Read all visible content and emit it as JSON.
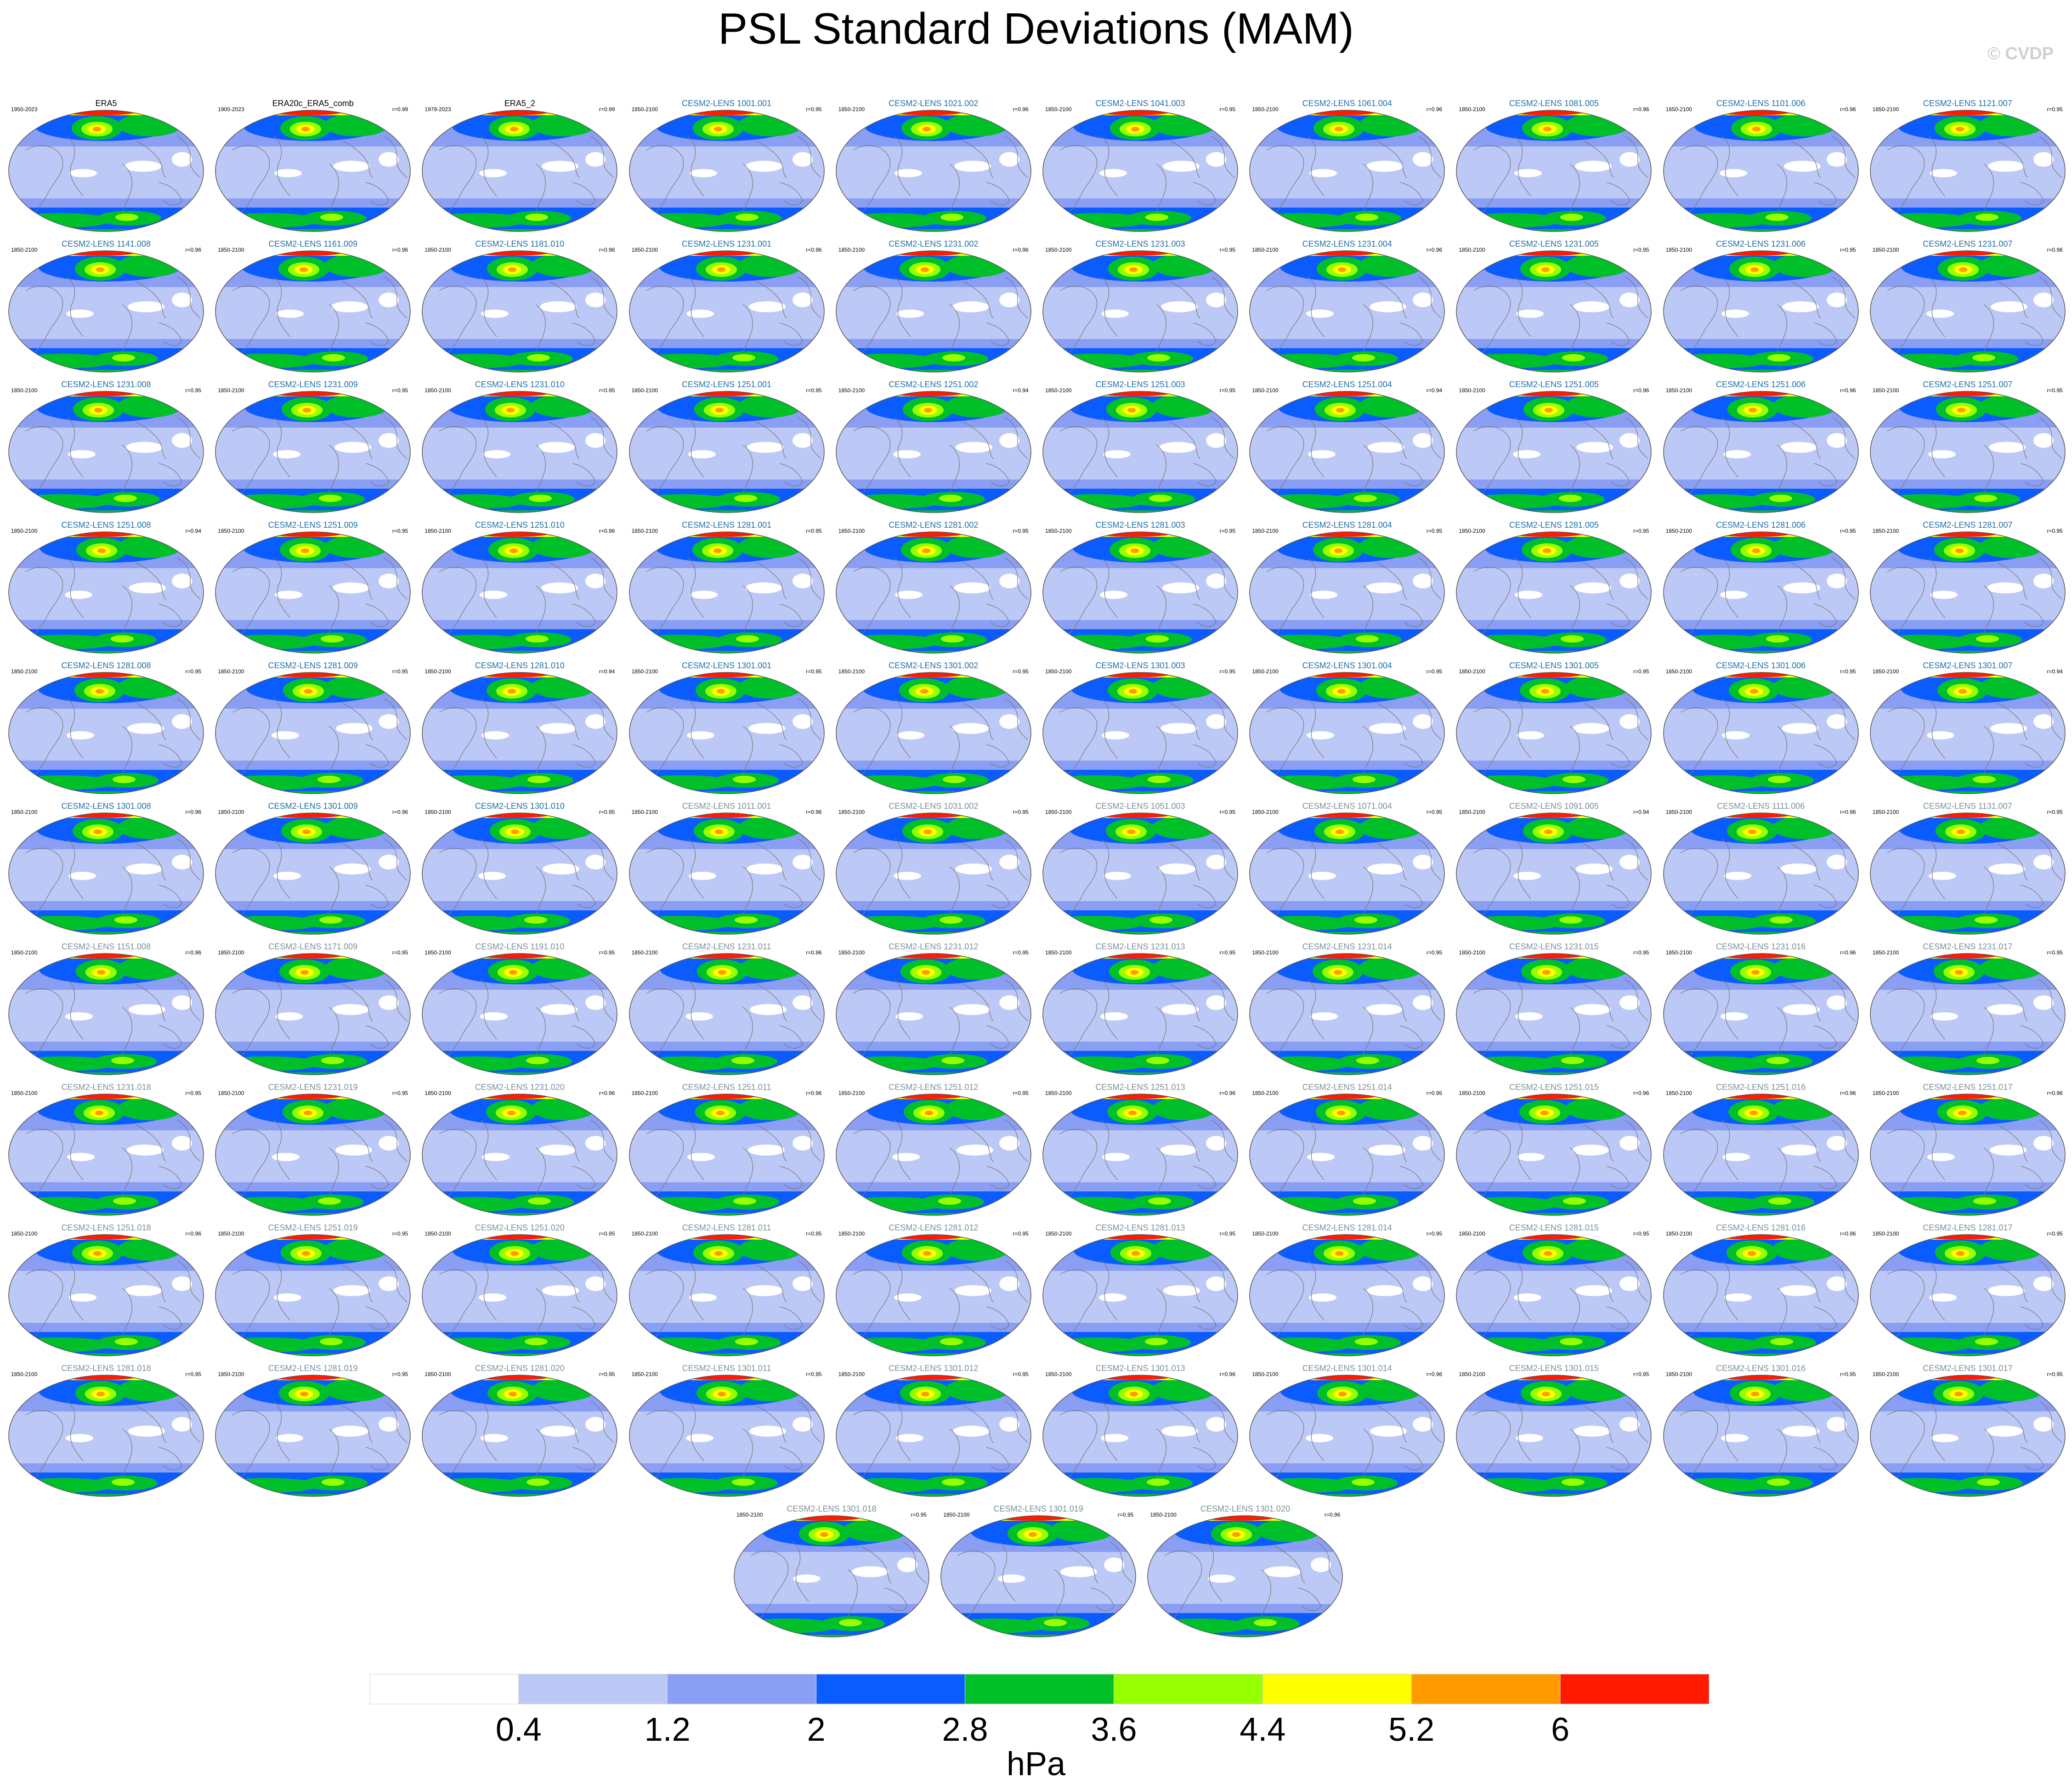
{
  "title": "PSL Standard Deviations (MAM)",
  "watermark": "© CVDP",
  "colors": {
    "obs_title": "#000000",
    "set1_title": "#1f6fa8",
    "set2_title": "#7a8f9c",
    "ocean": "#bcc9f6",
    "coast": "#7a7a7a"
  },
  "chart_data": {
    "type": "heatmap",
    "description_type": "panel grid of global maps",
    "units": "hPa",
    "colorbar": {
      "ticks": [
        "0.4",
        "1.2",
        "2",
        "2.8",
        "3.6",
        "4.4",
        "5.2",
        "6"
      ],
      "colors": [
        "#ffffff",
        "#bcc9f6",
        "#8a9ef3",
        "#0a5cff",
        "#00c02a",
        "#96ff00",
        "#ffff00",
        "#ff9a00",
        "#ff1a00"
      ]
    },
    "panels": [
      {
        "title": "ERA5",
        "period": "1950-2023",
        "r": "",
        "group": "obs"
      },
      {
        "title": "ERA20c_ERA5_comb",
        "period": "1900-2023",
        "r": "r=0.99",
        "group": "obs"
      },
      {
        "title": "ERA5_2",
        "period": "1979-2023",
        "r": "r=0.99",
        "group": "obs"
      },
      {
        "title": "CESM2-LENS 1001.001",
        "period": "1850-2100",
        "r": "r=0.95",
        "group": "set1"
      },
      {
        "title": "CESM2-LENS 1021.002",
        "period": "1850-2100",
        "r": "r=0.96",
        "group": "set1"
      },
      {
        "title": "CESM2-LENS 1041.003",
        "period": "1850-2100",
        "r": "r=0.95",
        "group": "set1"
      },
      {
        "title": "CESM2-LENS 1061.004",
        "period": "1850-2100",
        "r": "r=0.96",
        "group": "set1"
      },
      {
        "title": "CESM2-LENS 1081.005",
        "period": "1850-2100",
        "r": "r=0.96",
        "group": "set1"
      },
      {
        "title": "CESM2-LENS 1101.006",
        "period": "1850-2100",
        "r": "r=0.96",
        "group": "set1"
      },
      {
        "title": "CESM2-LENS 1121.007",
        "period": "1850-2100",
        "r": "r=0.95",
        "group": "set1"
      },
      {
        "title": "CESM2-LENS 1141.008",
        "period": "1850-2100",
        "r": "r=0.96",
        "group": "set1"
      },
      {
        "title": "CESM2-LENS 1161.009",
        "period": "1850-2100",
        "r": "r=0.96",
        "group": "set1"
      },
      {
        "title": "CESM2-LENS 1181.010",
        "period": "1850-2100",
        "r": "r=0.96",
        "group": "set1"
      },
      {
        "title": "CESM2-LENS 1231.001",
        "period": "1850-2100",
        "r": "r=0.96",
        "group": "set1"
      },
      {
        "title": "CESM2-LENS 1231.002",
        "period": "1850-2100",
        "r": "r=0.96",
        "group": "set1"
      },
      {
        "title": "CESM2-LENS 1231.003",
        "period": "1850-2100",
        "r": "r=0.95",
        "group": "set1"
      },
      {
        "title": "CESM2-LENS 1231.004",
        "period": "1850-2100",
        "r": "r=0.96",
        "group": "set1"
      },
      {
        "title": "CESM2-LENS 1231.005",
        "period": "1850-2100",
        "r": "r=0.95",
        "group": "set1"
      },
      {
        "title": "CESM2-LENS 1231.006",
        "period": "1850-2100",
        "r": "r=0.95",
        "group": "set1"
      },
      {
        "title": "CESM2-LENS 1231.007",
        "period": "1850-2100",
        "r": "r=0.96",
        "group": "set1"
      },
      {
        "title": "CESM2-LENS 1231.008",
        "period": "1850-2100",
        "r": "r=0.95",
        "group": "set1"
      },
      {
        "title": "CESM2-LENS 1231.009",
        "period": "1850-2100",
        "r": "r=0.95",
        "group": "set1"
      },
      {
        "title": "CESM2-LENS 1231.010",
        "period": "1850-2100",
        "r": "r=0.95",
        "group": "set1"
      },
      {
        "title": "CESM2-LENS 1251.001",
        "period": "1850-2100",
        "r": "r=0.95",
        "group": "set1"
      },
      {
        "title": "CESM2-LENS 1251.002",
        "period": "1850-2100",
        "r": "r=0.94",
        "group": "set1"
      },
      {
        "title": "CESM2-LENS 1251.003",
        "period": "1850-2100",
        "r": "r=0.95",
        "group": "set1"
      },
      {
        "title": "CESM2-LENS 1251.004",
        "period": "1850-2100",
        "r": "r=0.94",
        "group": "set1"
      },
      {
        "title": "CESM2-LENS 1251.005",
        "period": "1850-2100",
        "r": "r=0.96",
        "group": "set1"
      },
      {
        "title": "CESM2-LENS 1251.006",
        "period": "1850-2100",
        "r": "r=0.96",
        "group": "set1"
      },
      {
        "title": "CESM2-LENS 1251.007",
        "period": "1850-2100",
        "r": "r=0.95",
        "group": "set1"
      },
      {
        "title": "CESM2-LENS 1251.008",
        "period": "1850-2100",
        "r": "r=0.94",
        "group": "set1"
      },
      {
        "title": "CESM2-LENS 1251.009",
        "period": "1850-2100",
        "r": "r=0.95",
        "group": "set1"
      },
      {
        "title": "CESM2-LENS 1251.010",
        "period": "1850-2100",
        "r": "r=0.96",
        "group": "set1"
      },
      {
        "title": "CESM2-LENS 1281.001",
        "period": "1850-2100",
        "r": "r=0.95",
        "group": "set1"
      },
      {
        "title": "CESM2-LENS 1281.002",
        "period": "1850-2100",
        "r": "r=0.95",
        "group": "set1"
      },
      {
        "title": "CESM2-LENS 1281.003",
        "period": "1850-2100",
        "r": "r=0.95",
        "group": "set1"
      },
      {
        "title": "CESM2-LENS 1281.004",
        "period": "1850-2100",
        "r": "r=0.95",
        "group": "set1"
      },
      {
        "title": "CESM2-LENS 1281.005",
        "period": "1850-2100",
        "r": "r=0.95",
        "group": "set1"
      },
      {
        "title": "CESM2-LENS 1281.006",
        "period": "1850-2100",
        "r": "r=0.95",
        "group": "set1"
      },
      {
        "title": "CESM2-LENS 1281.007",
        "period": "1850-2100",
        "r": "r=0.95",
        "group": "set1"
      },
      {
        "title": "CESM2-LENS 1281.008",
        "period": "1850-2100",
        "r": "r=0.95",
        "group": "set1"
      },
      {
        "title": "CESM2-LENS 1281.009",
        "period": "1850-2100",
        "r": "r=0.95",
        "group": "set1"
      },
      {
        "title": "CESM2-LENS 1281.010",
        "period": "1850-2100",
        "r": "r=0.94",
        "group": "set1"
      },
      {
        "title": "CESM2-LENS 1301.001",
        "period": "1850-2100",
        "r": "r=0.95",
        "group": "set1"
      },
      {
        "title": "CESM2-LENS 1301.002",
        "period": "1850-2100",
        "r": "r=0.95",
        "group": "set1"
      },
      {
        "title": "CESM2-LENS 1301.003",
        "period": "1850-2100",
        "r": "r=0.95",
        "group": "set1"
      },
      {
        "title": "CESM2-LENS 1301.004",
        "period": "1850-2100",
        "r": "r=0.95",
        "group": "set1"
      },
      {
        "title": "CESM2-LENS 1301.005",
        "period": "1850-2100",
        "r": "r=0.95",
        "group": "set1"
      },
      {
        "title": "CESM2-LENS 1301.006",
        "period": "1850-2100",
        "r": "r=0.95",
        "group": "set1"
      },
      {
        "title": "CESM2-LENS 1301.007",
        "period": "1850-2100",
        "r": "r=0.94",
        "group": "set1"
      },
      {
        "title": "CESM2-LENS 1301.008",
        "period": "1850-2100",
        "r": "r=0.96",
        "group": "set1"
      },
      {
        "title": "CESM2-LENS 1301.009",
        "period": "1850-2100",
        "r": "r=0.96",
        "group": "set1"
      },
      {
        "title": "CESM2-LENS 1301.010",
        "period": "1850-2100",
        "r": "r=0.95",
        "group": "set1"
      },
      {
        "title": "CESM2-LENS 1011.001",
        "period": "1850-2100",
        "r": "r=0.96",
        "group": "set2"
      },
      {
        "title": "CESM2-LENS 1031.002",
        "period": "1850-2100",
        "r": "r=0.95",
        "group": "set2"
      },
      {
        "title": "CESM2-LENS 1051.003",
        "period": "1850-2100",
        "r": "r=0.95",
        "group": "set2"
      },
      {
        "title": "CESM2-LENS 1071.004",
        "period": "1850-2100",
        "r": "r=0.95",
        "group": "set2"
      },
      {
        "title": "CESM2-LENS 1091.005",
        "period": "1850-2100",
        "r": "r=0.94",
        "group": "set2"
      },
      {
        "title": "CESM2-LENS 1111.006",
        "period": "1850-2100",
        "r": "r=0.96",
        "group": "set2"
      },
      {
        "title": "CESM2-LENS 1131.007",
        "period": "1850-2100",
        "r": "r=0.95",
        "group": "set2"
      },
      {
        "title": "CESM2-LENS 1151.008",
        "period": "1850-2100",
        "r": "r=0.96",
        "group": "set2"
      },
      {
        "title": "CESM2-LENS 1171.009",
        "period": "1850-2100",
        "r": "r=0.95",
        "group": "set2"
      },
      {
        "title": "CESM2-LENS 1191.010",
        "period": "1850-2100",
        "r": "r=0.95",
        "group": "set2"
      },
      {
        "title": "CESM2-LENS 1231.011",
        "period": "1850-2100",
        "r": "r=0.96",
        "group": "set2"
      },
      {
        "title": "CESM2-LENS 1231.012",
        "period": "1850-2100",
        "r": "r=0.95",
        "group": "set2"
      },
      {
        "title": "CESM2-LENS 1231.013",
        "period": "1850-2100",
        "r": "r=0.95",
        "group": "set2"
      },
      {
        "title": "CESM2-LENS 1231.014",
        "period": "1850-2100",
        "r": "r=0.95",
        "group": "set2"
      },
      {
        "title": "CESM2-LENS 1231.015",
        "period": "1850-2100",
        "r": "r=0.95",
        "group": "set2"
      },
      {
        "title": "CESM2-LENS 1231.016",
        "period": "1850-2100",
        "r": "r=0.96",
        "group": "set2"
      },
      {
        "title": "CESM2-LENS 1231.017",
        "period": "1850-2100",
        "r": "r=0.95",
        "group": "set2"
      },
      {
        "title": "CESM2-LENS 1231.018",
        "period": "1850-2100",
        "r": "r=0.95",
        "group": "set2"
      },
      {
        "title": "CESM2-LENS 1231.019",
        "period": "1850-2100",
        "r": "r=0.95",
        "group": "set2"
      },
      {
        "title": "CESM2-LENS 1231.020",
        "period": "1850-2100",
        "r": "r=0.96",
        "group": "set2"
      },
      {
        "title": "CESM2-LENS 1251.011",
        "period": "1850-2100",
        "r": "r=0.96",
        "group": "set2"
      },
      {
        "title": "CESM2-LENS 1251.012",
        "period": "1850-2100",
        "r": "r=0.95",
        "group": "set2"
      },
      {
        "title": "CESM2-LENS 1251.013",
        "period": "1850-2100",
        "r": "r=0.96",
        "group": "set2"
      },
      {
        "title": "CESM2-LENS 1251.014",
        "period": "1850-2100",
        "r": "r=0.95",
        "group": "set2"
      },
      {
        "title": "CESM2-LENS 1251.015",
        "period": "1850-2100",
        "r": "r=0.96",
        "group": "set2"
      },
      {
        "title": "CESM2-LENS 1251.016",
        "period": "1850-2100",
        "r": "r=0.96",
        "group": "set2"
      },
      {
        "title": "CESM2-LENS 1251.017",
        "period": "1850-2100",
        "r": "r=0.96",
        "group": "set2"
      },
      {
        "title": "CESM2-LENS 1251.018",
        "period": "1850-2100",
        "r": "r=0.96",
        "group": "set2"
      },
      {
        "title": "CESM2-LENS 1251.019",
        "period": "1850-2100",
        "r": "r=0.95",
        "group": "set2"
      },
      {
        "title": "CESM2-LENS 1251.020",
        "period": "1850-2100",
        "r": "r=0.95",
        "group": "set2"
      },
      {
        "title": "CESM2-LENS 1281.011",
        "period": "1850-2100",
        "r": "r=0.95",
        "group": "set2"
      },
      {
        "title": "CESM2-LENS 1281.012",
        "period": "1850-2100",
        "r": "r=0.95",
        "group": "set2"
      },
      {
        "title": "CESM2-LENS 1281.013",
        "period": "1850-2100",
        "r": "r=0.95",
        "group": "set2"
      },
      {
        "title": "CESM2-LENS 1281.014",
        "period": "1850-2100",
        "r": "r=0.95",
        "group": "set2"
      },
      {
        "title": "CESM2-LENS 1281.015",
        "period": "1850-2100",
        "r": "r=0.95",
        "group": "set2"
      },
      {
        "title": "CESM2-LENS 1281.016",
        "period": "1850-2100",
        "r": "r=0.96",
        "group": "set2"
      },
      {
        "title": "CESM2-LENS 1281.017",
        "period": "1850-2100",
        "r": "r=0.95",
        "group": "set2"
      },
      {
        "title": "CESM2-LENS 1281.018",
        "period": "1850-2100",
        "r": "r=0.95",
        "group": "set2"
      },
      {
        "title": "CESM2-LENS 1281.019",
        "period": "1850-2100",
        "r": "r=0.95",
        "group": "set2"
      },
      {
        "title": "CESM2-LENS 1281.020",
        "period": "1850-2100",
        "r": "r=0.95",
        "group": "set2"
      },
      {
        "title": "CESM2-LENS 1301.011",
        "period": "1850-2100",
        "r": "r=0.95",
        "group": "set2"
      },
      {
        "title": "CESM2-LENS 1301.012",
        "period": "1850-2100",
        "r": "r=0.95",
        "group": "set2"
      },
      {
        "title": "CESM2-LENS 1301.013",
        "period": "1850-2100",
        "r": "r=0.96",
        "group": "set2"
      },
      {
        "title": "CESM2-LENS 1301.014",
        "period": "1850-2100",
        "r": "r=0.96",
        "group": "set2"
      },
      {
        "title": "CESM2-LENS 1301.015",
        "period": "1850-2100",
        "r": "r=0.95",
        "group": "set2"
      },
      {
        "title": "CESM2-LENS 1301.016",
        "period": "1850-2100",
        "r": "r=0.95",
        "group": "set2"
      },
      {
        "title": "CESM2-LENS 1301.017",
        "period": "1850-2100",
        "r": "r=0.95",
        "group": "set2"
      },
      {
        "title": "CESM2-LENS 1301.018",
        "period": "1850-2100",
        "r": "r=0.95",
        "group": "set2"
      },
      {
        "title": "CESM2-LENS 1301.019",
        "period": "1850-2100",
        "r": "r=0.95",
        "group": "set2"
      },
      {
        "title": "CESM2-LENS 1301.020",
        "period": "1850-2100",
        "r": "r=0.96",
        "group": "set2"
      }
    ]
  }
}
